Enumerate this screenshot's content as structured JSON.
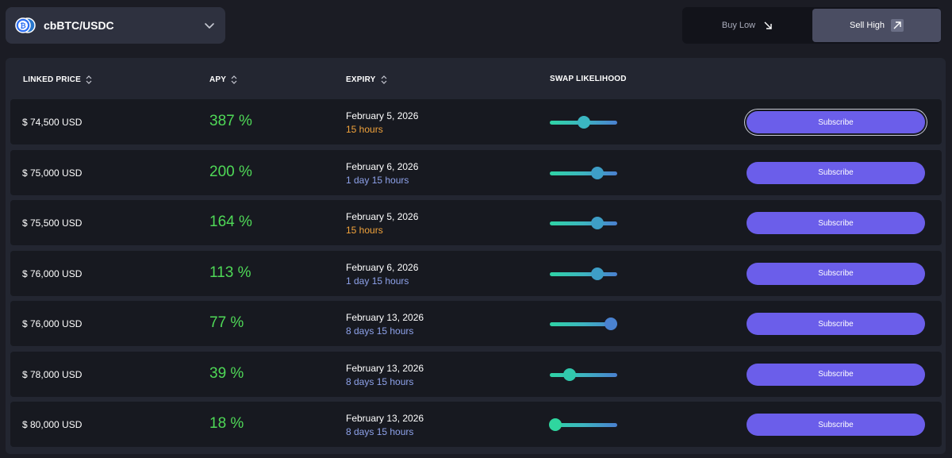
{
  "pair_selector": {
    "label": "cbBTC/USDC"
  },
  "direction_toggle": {
    "buy_low": "Buy Low",
    "sell_high": "Sell High",
    "selected": "sell_high"
  },
  "table": {
    "headers": {
      "linked_price": "LINKED PRICE",
      "apy": "APY",
      "expiry": "EXPIRY",
      "swap_likelihood": "SWAP LIKELIHOOD"
    },
    "rows": [
      {
        "price": "$ 74,500 USD",
        "apy": "387 %",
        "date": "February 5, 2026",
        "remaining": "15 hours",
        "remaining_tone": "orange",
        "likelihood": 0.51,
        "knob_color": "#3bb6c1",
        "subscribe": "Subscribe"
      },
      {
        "price": "$ 75,000 USD",
        "apy": "200 %",
        "date": "February 6, 2026",
        "remaining": "1 day 15 hours",
        "remaining_tone": "blue",
        "likelihood": 0.71,
        "knob_color": "#3e9ec7",
        "subscribe": "Subscribe"
      },
      {
        "price": "$ 75,500 USD",
        "apy": "164 %",
        "date": "February 5, 2026",
        "remaining": "15 hours",
        "remaining_tone": "orange",
        "likelihood": 0.71,
        "knob_color": "#3e9ec7",
        "subscribe": "Subscribe"
      },
      {
        "price": "$ 76,000 USD",
        "apy": "113 %",
        "date": "February 6, 2026",
        "remaining": "1 day 15 hours",
        "remaining_tone": "blue",
        "likelihood": 0.71,
        "knob_color": "#3e9ec7",
        "subscribe": "Subscribe"
      },
      {
        "price": "$ 76,000 USD",
        "apy": "77 %",
        "date": "February 13, 2026",
        "remaining": "8 days 15 hours",
        "remaining_tone": "blue",
        "likelihood": 0.9,
        "knob_color": "#4a82d0",
        "subscribe": "Subscribe"
      },
      {
        "price": "$ 78,000 USD",
        "apy": "39 %",
        "date": "February 13, 2026",
        "remaining": "8 days 15 hours",
        "remaining_tone": "blue",
        "likelihood": 0.29,
        "knob_color": "#31c8ad",
        "subscribe": "Subscribe"
      },
      {
        "price": "$ 80,000 USD",
        "apy": "18 %",
        "date": "February 13, 2026",
        "remaining": "8 days 15 hours",
        "remaining_tone": "blue",
        "likelihood": 0.08,
        "knob_color": "#2fd69f",
        "subscribe": "Subscribe"
      }
    ]
  },
  "colors": {
    "background": "#1b1c24",
    "apy_green": "#4fd957",
    "subscribe_purple": "#6b5eea",
    "remaining_orange": "#f2a33b",
    "remaining_blue": "#8ea2ea"
  },
  "icons": {
    "pair": "btc-usdc-icon",
    "dropdown": "chevron-down-icon",
    "buy_low": "arrow-down-right-icon",
    "sell_high": "arrow-up-right-icon",
    "sort": "sort-icon"
  }
}
